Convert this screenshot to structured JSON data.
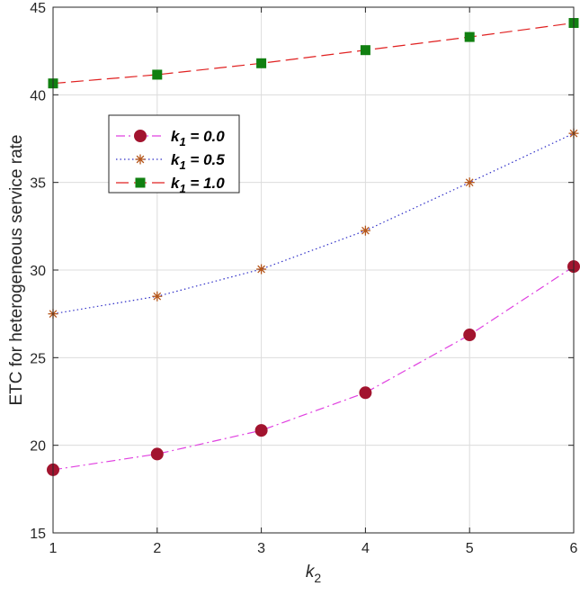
{
  "chart_data": {
    "type": "line",
    "title": "",
    "xlabel": "k",
    "xlabel_sub": "2",
    "ylabel": "ETC for heterogeneous service rate",
    "xlim": [
      1,
      6
    ],
    "ylim": [
      15,
      45
    ],
    "xticks": [
      1,
      2,
      3,
      4,
      5,
      6
    ],
    "yticks": [
      15,
      20,
      25,
      30,
      35,
      40,
      45
    ],
    "grid": true,
    "legend_position": "upper-left",
    "x": [
      1,
      2,
      3,
      4,
      5,
      6
    ],
    "series": [
      {
        "legend": {
          "var": "k",
          "sub": "1",
          "rest": " = 0.0"
        },
        "values": [
          18.6,
          19.5,
          20.85,
          23.0,
          26.3,
          30.2
        ],
        "line_color": "#e040e0",
        "marker_color": "#a2142f",
        "line_style": "dash-dot",
        "marker": "circle"
      },
      {
        "legend": {
          "var": "k",
          "sub": "1",
          "rest": " = 0.5"
        },
        "values": [
          27.5,
          28.5,
          30.05,
          32.25,
          35.0,
          37.8
        ],
        "line_color": "#3030c8",
        "marker_color": "#b5561a",
        "line_style": "dotted",
        "marker": "asterisk"
      },
      {
        "legend": {
          "var": "k",
          "sub": "1",
          "rest": " = 1.0"
        },
        "values": [
          40.65,
          41.15,
          41.8,
          42.55,
          43.3,
          44.1
        ],
        "line_color": "#e02020",
        "marker_color": "#118011",
        "line_style": "dashed",
        "marker": "square"
      }
    ]
  }
}
